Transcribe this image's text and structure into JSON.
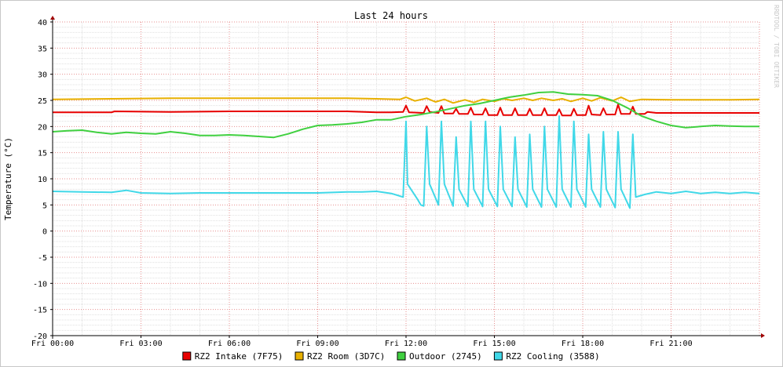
{
  "chart_data": {
    "type": "line",
    "title": "Last 24 hours",
    "ylabel": "Temperature (°C)",
    "xlabel": "",
    "watermark": "RRDTOOL / TOBI OETIKER",
    "ylim": [
      -20,
      40
    ],
    "y_ticks": [
      40,
      35,
      30,
      25,
      20,
      15,
      10,
      5,
      0,
      -5,
      -10,
      -15,
      -20
    ],
    "xlim": [
      0,
      24
    ],
    "x_ticks": [
      {
        "hour": 0,
        "label": "Fri 00:00"
      },
      {
        "hour": 3,
        "label": "Fri 03:00"
      },
      {
        "hour": 6,
        "label": "Fri 06:00"
      },
      {
        "hour": 9,
        "label": "Fri 09:00"
      },
      {
        "hour": 12,
        "label": "Fri 12:00"
      },
      {
        "hour": 15,
        "label": "Fri 15:00"
      },
      {
        "hour": 18,
        "label": "Fri 18:00"
      },
      {
        "hour": 21,
        "label": "Fri 21:00"
      }
    ],
    "grid": true,
    "legend_position": "bottom",
    "series": [
      {
        "name": "RZ2 Intake (7F75)",
        "color": "#e80000",
        "points": [
          [
            0.0,
            22.7
          ],
          [
            2.0,
            22.7
          ],
          [
            2.1,
            22.9
          ],
          [
            4.0,
            22.8
          ],
          [
            6.0,
            22.9
          ],
          [
            8.0,
            22.9
          ],
          [
            10.0,
            22.9
          ],
          [
            11.0,
            22.7
          ],
          [
            11.5,
            22.7
          ],
          [
            11.9,
            22.8
          ],
          [
            12.0,
            24.0
          ],
          [
            12.1,
            22.7
          ],
          [
            12.6,
            22.6
          ],
          [
            12.7,
            23.9
          ],
          [
            12.8,
            22.8
          ],
          [
            13.1,
            22.6
          ],
          [
            13.2,
            23.9
          ],
          [
            13.3,
            22.5
          ],
          [
            13.6,
            22.5
          ],
          [
            13.7,
            23.4
          ],
          [
            13.8,
            22.4
          ],
          [
            14.1,
            22.4
          ],
          [
            14.2,
            23.6
          ],
          [
            14.3,
            22.3
          ],
          [
            14.6,
            22.3
          ],
          [
            14.7,
            23.5
          ],
          [
            14.8,
            22.2
          ],
          [
            15.1,
            22.2
          ],
          [
            15.2,
            23.6
          ],
          [
            15.3,
            22.2
          ],
          [
            15.6,
            22.2
          ],
          [
            15.7,
            23.5
          ],
          [
            15.8,
            22.2
          ],
          [
            16.1,
            22.2
          ],
          [
            16.2,
            23.4
          ],
          [
            16.3,
            22.2
          ],
          [
            16.6,
            22.2
          ],
          [
            16.7,
            23.5
          ],
          [
            16.8,
            22.2
          ],
          [
            17.1,
            22.2
          ],
          [
            17.2,
            23.3
          ],
          [
            17.3,
            22.1
          ],
          [
            17.6,
            22.1
          ],
          [
            17.7,
            23.4
          ],
          [
            17.8,
            22.2
          ],
          [
            18.1,
            22.2
          ],
          [
            18.2,
            24.0
          ],
          [
            18.3,
            22.3
          ],
          [
            18.6,
            22.2
          ],
          [
            18.7,
            23.5
          ],
          [
            18.8,
            22.3
          ],
          [
            19.1,
            22.3
          ],
          [
            19.2,
            24.2
          ],
          [
            19.3,
            22.4
          ],
          [
            19.6,
            22.4
          ],
          [
            19.7,
            23.8
          ],
          [
            19.8,
            22.4
          ],
          [
            20.1,
            22.4
          ],
          [
            20.2,
            22.8
          ],
          [
            20.5,
            22.6
          ],
          [
            21.0,
            22.6
          ],
          [
            22.0,
            22.6
          ],
          [
            23.0,
            22.6
          ],
          [
            24.0,
            22.6
          ]
        ]
      },
      {
        "name": "RZ2 Room (3D7C)",
        "color": "#e8b000",
        "points": [
          [
            0.0,
            25.2
          ],
          [
            2.0,
            25.3
          ],
          [
            4.0,
            25.4
          ],
          [
            6.0,
            25.4
          ],
          [
            8.0,
            25.4
          ],
          [
            10.0,
            25.4
          ],
          [
            11.0,
            25.3
          ],
          [
            11.8,
            25.2
          ],
          [
            12.0,
            25.6
          ],
          [
            12.3,
            24.9
          ],
          [
            12.7,
            25.4
          ],
          [
            13.0,
            24.7
          ],
          [
            13.3,
            25.2
          ],
          [
            13.6,
            24.5
          ],
          [
            14.0,
            25.1
          ],
          [
            14.3,
            24.6
          ],
          [
            14.6,
            25.2
          ],
          [
            15.0,
            24.8
          ],
          [
            15.3,
            25.3
          ],
          [
            15.6,
            25.0
          ],
          [
            16.0,
            25.4
          ],
          [
            16.3,
            25.0
          ],
          [
            16.6,
            25.4
          ],
          [
            17.0,
            25.0
          ],
          [
            17.3,
            25.3
          ],
          [
            17.6,
            24.8
          ],
          [
            18.0,
            25.4
          ],
          [
            18.3,
            24.9
          ],
          [
            18.6,
            25.5
          ],
          [
            19.0,
            24.9
          ],
          [
            19.3,
            25.6
          ],
          [
            19.6,
            24.8
          ],
          [
            20.0,
            25.2
          ],
          [
            21.0,
            25.1
          ],
          [
            22.0,
            25.1
          ],
          [
            23.0,
            25.1
          ],
          [
            24.0,
            25.2
          ]
        ]
      },
      {
        "name": "Outdoor (2745)",
        "color": "#40d040",
        "points": [
          [
            0.0,
            19.0
          ],
          [
            0.5,
            19.2
          ],
          [
            1.0,
            19.3
          ],
          [
            1.5,
            18.9
          ],
          [
            2.0,
            18.6
          ],
          [
            2.5,
            18.9
          ],
          [
            3.0,
            18.7
          ],
          [
            3.5,
            18.6
          ],
          [
            4.0,
            19.0
          ],
          [
            4.5,
            18.7
          ],
          [
            5.0,
            18.3
          ],
          [
            5.5,
            18.3
          ],
          [
            6.0,
            18.4
          ],
          [
            6.5,
            18.3
          ],
          [
            7.0,
            18.1
          ],
          [
            7.5,
            17.9
          ],
          [
            8.0,
            18.6
          ],
          [
            8.5,
            19.5
          ],
          [
            9.0,
            20.2
          ],
          [
            9.5,
            20.3
          ],
          [
            10.0,
            20.5
          ],
          [
            10.5,
            20.8
          ],
          [
            11.0,
            21.3
          ],
          [
            11.5,
            21.3
          ],
          [
            12.0,
            21.9
          ],
          [
            12.5,
            22.3
          ],
          [
            13.0,
            22.8
          ],
          [
            13.5,
            23.4
          ],
          [
            14.0,
            24.0
          ],
          [
            14.5,
            24.4
          ],
          [
            15.0,
            25.0
          ],
          [
            15.5,
            25.6
          ],
          [
            16.0,
            26.0
          ],
          [
            16.5,
            26.5
          ],
          [
            17.0,
            26.6
          ],
          [
            17.5,
            26.2
          ],
          [
            18.0,
            26.1
          ],
          [
            18.5,
            25.9
          ],
          [
            19.0,
            25.0
          ],
          [
            19.5,
            23.6
          ],
          [
            20.0,
            22.0
          ],
          [
            20.5,
            21.0
          ],
          [
            21.0,
            20.2
          ],
          [
            21.5,
            19.8
          ],
          [
            22.0,
            20.0
          ],
          [
            22.5,
            20.2
          ],
          [
            23.0,
            20.1
          ],
          [
            23.5,
            20.0
          ],
          [
            24.0,
            20.0
          ]
        ]
      },
      {
        "name": "RZ2 Cooling (3588)",
        "color": "#40d8e8",
        "points": [
          [
            0.0,
            7.6
          ],
          [
            1.0,
            7.5
          ],
          [
            2.0,
            7.4
          ],
          [
            2.5,
            7.8
          ],
          [
            3.0,
            7.3
          ],
          [
            4.0,
            7.2
          ],
          [
            5.0,
            7.3
          ],
          [
            6.0,
            7.3
          ],
          [
            7.0,
            7.3
          ],
          [
            8.0,
            7.3
          ],
          [
            9.0,
            7.3
          ],
          [
            10.0,
            7.5
          ],
          [
            10.5,
            7.5
          ],
          [
            11.0,
            7.6
          ],
          [
            11.5,
            7.2
          ],
          [
            11.9,
            6.5
          ],
          [
            12.0,
            21.0
          ],
          [
            12.05,
            9.0
          ],
          [
            12.4,
            6.0
          ],
          [
            12.5,
            5.0
          ],
          [
            12.6,
            4.8
          ],
          [
            12.7,
            20.0
          ],
          [
            12.8,
            9.0
          ],
          [
            13.1,
            5.0
          ],
          [
            13.2,
            21.0
          ],
          [
            13.3,
            9.0
          ],
          [
            13.6,
            4.8
          ],
          [
            13.7,
            18.0
          ],
          [
            13.8,
            8.0
          ],
          [
            14.1,
            4.7
          ],
          [
            14.2,
            21.0
          ],
          [
            14.3,
            8.0
          ],
          [
            14.6,
            4.7
          ],
          [
            14.7,
            21.0
          ],
          [
            14.8,
            8.0
          ],
          [
            15.1,
            4.7
          ],
          [
            15.2,
            20.0
          ],
          [
            15.3,
            8.0
          ],
          [
            15.6,
            4.7
          ],
          [
            15.7,
            18.0
          ],
          [
            15.8,
            8.0
          ],
          [
            16.1,
            4.6
          ],
          [
            16.2,
            18.5
          ],
          [
            16.3,
            8.0
          ],
          [
            16.6,
            4.6
          ],
          [
            16.7,
            20.0
          ],
          [
            16.8,
            8.0
          ],
          [
            17.1,
            4.6
          ],
          [
            17.2,
            22.0
          ],
          [
            17.3,
            8.0
          ],
          [
            17.6,
            4.6
          ],
          [
            17.7,
            21.0
          ],
          [
            17.8,
            8.0
          ],
          [
            18.1,
            4.6
          ],
          [
            18.2,
            18.5
          ],
          [
            18.3,
            8.0
          ],
          [
            18.6,
            4.6
          ],
          [
            18.7,
            19.0
          ],
          [
            18.8,
            8.0
          ],
          [
            19.1,
            4.5
          ],
          [
            19.2,
            19.0
          ],
          [
            19.3,
            8.0
          ],
          [
            19.6,
            4.4
          ],
          [
            19.7,
            18.5
          ],
          [
            19.8,
            6.5
          ],
          [
            20.1,
            7.0
          ],
          [
            20.5,
            7.5
          ],
          [
            21.0,
            7.2
          ],
          [
            21.5,
            7.6
          ],
          [
            22.0,
            7.2
          ],
          [
            22.5,
            7.4
          ],
          [
            23.0,
            7.2
          ],
          [
            23.5,
            7.4
          ],
          [
            24.0,
            7.2
          ]
        ]
      }
    ]
  }
}
